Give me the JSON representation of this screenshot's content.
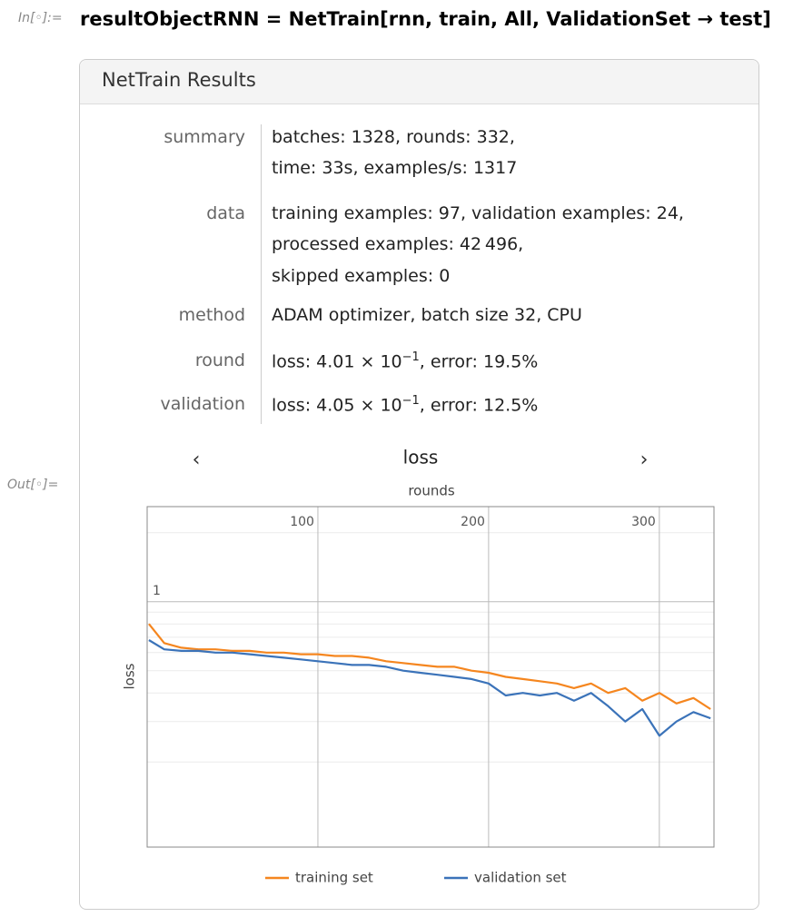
{
  "input_label": "In[◦]:=",
  "output_label": "Out[◦]=",
  "code": "resultObjectRNN = NetTrain[rnn, train, All, ValidationSet → test]",
  "panel": {
    "title": "NetTrain Results",
    "rows": [
      {
        "label": "summary",
        "lines": [
          "batches: 1328, rounds: 332,",
          "time: 33s, examples/s: 1317"
        ]
      },
      {
        "label": "data",
        "lines": [
          "training examples: 97, validation examples: 24,",
          "processed examples: 42 496,",
          "skipped examples: 0"
        ]
      },
      {
        "label": "method",
        "lines": [
          "ADAM optimizer, batch size 32, CPU"
        ]
      },
      {
        "label": "round",
        "lines": [
          {
            "pre": "loss: 4.01 × 10",
            "exp": "−1",
            "post": ", error: 19.5%"
          }
        ]
      },
      {
        "label": "validation",
        "lines": [
          {
            "pre": "loss: 4.05 × 10",
            "exp": "−1",
            "post": ", error: 12.5%"
          }
        ]
      }
    ],
    "nav": {
      "prev": "‹",
      "next": "›"
    }
  },
  "chart_data": {
    "type": "line",
    "title": "loss",
    "x_label": "rounds",
    "y_label": "loss",
    "x": [
      1,
      10,
      20,
      30,
      40,
      50,
      60,
      70,
      80,
      90,
      100,
      110,
      120,
      130,
      140,
      150,
      160,
      170,
      180,
      190,
      200,
      210,
      220,
      230,
      240,
      250,
      260,
      270,
      280,
      290,
      300,
      310,
      320,
      330
    ],
    "series": [
      {
        "name": "training set",
        "color": "#f5861f",
        "values": [
          0.8,
          0.66,
          0.63,
          0.62,
          0.62,
          0.61,
          0.61,
          0.6,
          0.6,
          0.59,
          0.59,
          0.58,
          0.58,
          0.57,
          0.55,
          0.54,
          0.53,
          0.52,
          0.52,
          0.5,
          0.49,
          0.47,
          0.46,
          0.45,
          0.44,
          0.42,
          0.44,
          0.4,
          0.42,
          0.37,
          0.4,
          0.36,
          0.38,
          0.34
        ]
      },
      {
        "name": "validation set",
        "color": "#3b73b9",
        "values": [
          0.68,
          0.62,
          0.61,
          0.61,
          0.6,
          0.6,
          0.59,
          0.58,
          0.57,
          0.56,
          0.55,
          0.54,
          0.53,
          0.53,
          0.52,
          0.5,
          0.49,
          0.48,
          0.47,
          0.46,
          0.44,
          0.39,
          0.4,
          0.39,
          0.4,
          0.37,
          0.4,
          0.35,
          0.3,
          0.34,
          0.26,
          0.3,
          0.33,
          0.31
        ]
      }
    ],
    "xlim": [
      0,
      332
    ],
    "ylim": [
      0.085,
      2.6
    ],
    "xticks": [
      100,
      200,
      300
    ],
    "yticks": [
      1
    ],
    "yminor": [
      0.2,
      0.3,
      0.4,
      0.5,
      0.6,
      0.7,
      0.8,
      0.9,
      2
    ],
    "log_y": true,
    "grid": true,
    "legend": "bottom"
  }
}
